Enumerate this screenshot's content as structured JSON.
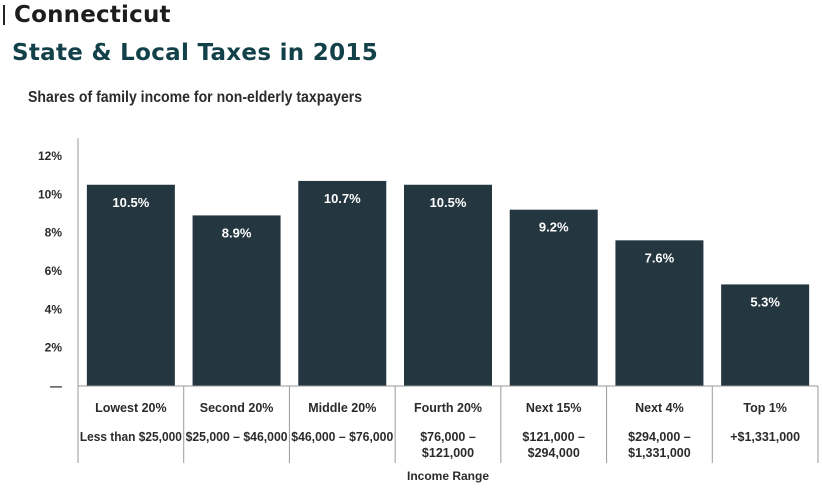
{
  "header": {
    "state": "Connecticut",
    "title": "State & Local Taxes in 2015"
  },
  "colors": {
    "bar": "#243640",
    "title": "#13414a"
  },
  "chart_data": {
    "type": "bar",
    "title": "Shares of family income for non-elderly taxpayers",
    "xlabel": "Income Range",
    "ylabel": "",
    "ylim": [
      0,
      12
    ],
    "yticks": [
      {
        "value": 2,
        "label": "2%"
      },
      {
        "value": 4,
        "label": "4%"
      },
      {
        "value": 6,
        "label": "6%"
      },
      {
        "value": 8,
        "label": "8%"
      },
      {
        "value": 10,
        "label": "10%"
      },
      {
        "value": 12,
        "label": "12%"
      }
    ],
    "zero_tick_label": "—",
    "categories": [
      "Lowest 20%",
      "Second 20%",
      "Middle 20%",
      "Fourth 20%",
      "Next 15%",
      "Next 4%",
      "Top 1%"
    ],
    "ranges": [
      [
        "Less than $25,000"
      ],
      [
        "$25,000 – $46,000"
      ],
      [
        "$46,000 – $76,000"
      ],
      [
        "$76,000 –",
        "$121,000"
      ],
      [
        "$121,000 –",
        "$294,000"
      ],
      [
        "$294,000 –",
        "$1,331,000"
      ],
      [
        "+$1,331,000"
      ]
    ],
    "values": [
      10.5,
      8.9,
      10.7,
      10.5,
      9.2,
      7.6,
      5.3
    ],
    "value_labels": [
      "10.5%",
      "8.9%",
      "10.7%",
      "10.5%",
      "9.2%",
      "7.6%",
      "5.3%"
    ],
    "grid": false,
    "legend": "none"
  }
}
